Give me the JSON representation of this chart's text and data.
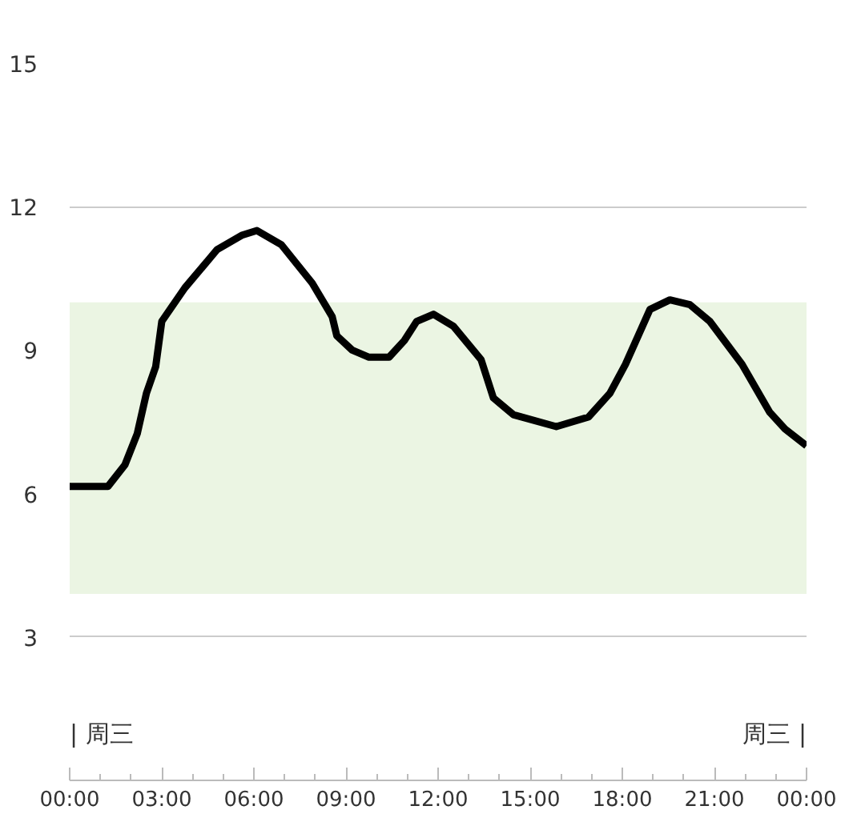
{
  "chart_data": {
    "type": "line",
    "x": [
      0,
      1.25,
      1.8,
      2.2,
      2.5,
      2.8,
      3.0,
      3.75,
      4.8,
      5.6,
      6.1,
      6.9,
      7.9,
      8.55,
      8.7,
      9.2,
      9.75,
      10.4,
      10.9,
      11.3,
      11.85,
      12.5,
      13.4,
      13.8,
      14.45,
      15.85,
      16.9,
      17.6,
      18.1,
      18.9,
      19.55,
      20.2,
      20.85,
      21.9,
      22.8,
      23.3,
      24
    ],
    "series": [
      {
        "color": "#000000",
        "values": [
          6.15,
          6.15,
          6.6,
          7.25,
          8.1,
          8.65,
          9.6,
          10.3,
          11.1,
          11.4,
          11.5,
          11.2,
          10.4,
          9.7,
          9.3,
          9.0,
          8.85,
          8.85,
          9.2,
          9.6,
          9.75,
          9.5,
          8.8,
          8.0,
          7.65,
          7.4,
          7.6,
          8.1,
          8.7,
          9.85,
          10.05,
          9.95,
          9.6,
          8.7,
          7.7,
          7.35,
          7.0
        ]
      }
    ],
    "xlim": [
      0,
      24
    ],
    "ylim": [
      0,
      15
    ],
    "xticks": [
      {
        "value": 0,
        "label": "00:00"
      },
      {
        "value": 3,
        "label": "03:00"
      },
      {
        "value": 6,
        "label": "06:00"
      },
      {
        "value": 9,
        "label": "09:00"
      },
      {
        "value": 12,
        "label": "12:00"
      },
      {
        "value": 15,
        "label": "15:00"
      },
      {
        "value": 18,
        "label": "18:00"
      },
      {
        "value": 21,
        "label": "21:00"
      },
      {
        "value": 24,
        "label": "00:00"
      }
    ],
    "yticks": [
      3,
      6,
      9,
      12,
      15
    ],
    "bands": [
      {
        "axis": "y",
        "from": 3.9,
        "to": 10,
        "color": "#ebf5e3"
      }
    ],
    "annotations": [
      "| 周三",
      "周三 |"
    ],
    "grid": "y",
    "marker": "none",
    "line_style": "solid"
  }
}
